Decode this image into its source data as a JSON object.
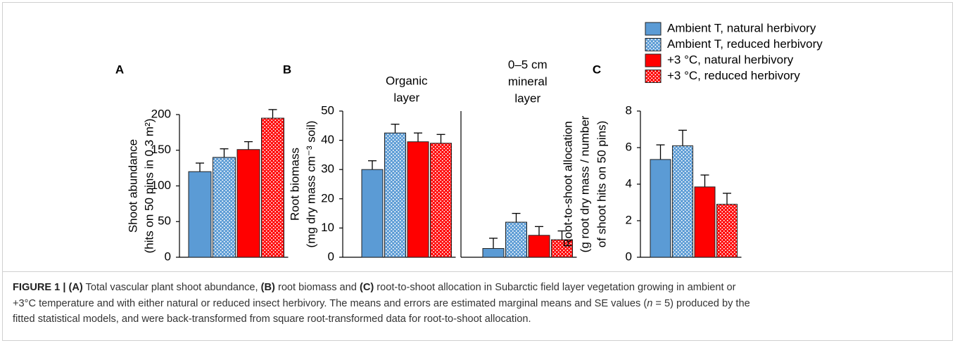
{
  "chart_data": [
    {
      "type": "bar",
      "label": "A",
      "ylabel": [
        "Shoot abundance",
        "(hits on 50 pins in 0.3 m²)"
      ],
      "ylim": [
        0,
        200
      ],
      "yticks": [
        0,
        50,
        100,
        150,
        200
      ],
      "series": [
        {
          "color": "#5b9bd5",
          "pattern": "solid",
          "values": [
            120
          ],
          "errors": [
            12
          ]
        },
        {
          "color": "#5b9bd5",
          "pattern": "dotted",
          "values": [
            140
          ],
          "errors": [
            12
          ]
        },
        {
          "color": "#ff0000",
          "pattern": "solid",
          "values": [
            151
          ],
          "errors": [
            11
          ]
        },
        {
          "color": "#ff0000",
          "pattern": "dotted",
          "values": [
            195
          ],
          "errors": [
            12
          ]
        }
      ]
    },
    {
      "type": "bar",
      "label": "B",
      "ylabel": [
        "Root biomass",
        "(mg dry mass cm⁻³ soil)"
      ],
      "ylim": [
        0,
        50
      ],
      "yticks": [
        0,
        10,
        20,
        30,
        40,
        50
      ],
      "categories": [
        [
          "Organic",
          "layer"
        ],
        [
          "0–5 cm",
          "mineral",
          "layer"
        ]
      ],
      "series": [
        {
          "color": "#5b9bd5",
          "pattern": "solid",
          "values": [
            30,
            3
          ],
          "errors": [
            3,
            3.5
          ]
        },
        {
          "color": "#5b9bd5",
          "pattern": "dotted",
          "values": [
            42.5,
            12
          ],
          "errors": [
            3,
            3
          ]
        },
        {
          "color": "#ff0000",
          "pattern": "solid",
          "values": [
            39.5,
            7.5
          ],
          "errors": [
            3,
            3
          ]
        },
        {
          "color": "#ff0000",
          "pattern": "dotted",
          "values": [
            39,
            6
          ],
          "errors": [
            3,
            3
          ]
        }
      ]
    },
    {
      "type": "bar",
      "label": "C",
      "ylabel": [
        "Root-to-shoot allocation",
        "(g root dry mass / number",
        "of shoot hits on 50 pins)"
      ],
      "ylim": [
        0,
        8
      ],
      "yticks": [
        0,
        2,
        4,
        6,
        8
      ],
      "series": [
        {
          "name": "Ambient T, natural herbivory",
          "color": "#5b9bd5",
          "pattern": "solid",
          "values": [
            5.35
          ],
          "errors": [
            0.8
          ]
        },
        {
          "name": "Ambient T, reduced herbivory",
          "color": "#5b9bd5",
          "pattern": "dotted",
          "values": [
            6.1
          ],
          "errors": [
            0.85
          ]
        },
        {
          "name": "+3 °C, natural herbivory",
          "color": "#ff0000",
          "pattern": "solid",
          "values": [
            3.85
          ],
          "errors": [
            0.65
          ]
        },
        {
          "name": "+3 °C, reduced herbivory",
          "color": "#ff0000",
          "pattern": "dotted",
          "values": [
            2.9
          ],
          "errors": [
            0.6
          ]
        }
      ]
    }
  ],
  "caption": [
    [
      {
        "text": "FIGURE 1 | (A)",
        "style": "bold"
      },
      {
        "text": " Total vascular plant shoot abundance, "
      },
      {
        "text": "(B)",
        "style": "bold"
      },
      {
        "text": " root biomass and "
      },
      {
        "text": "(C)",
        "style": "bold"
      },
      {
        "text": " root-to-shoot allocation in Subarctic field layer vegetation growing in ambient or"
      }
    ],
    [
      {
        "text": "+3°C temperature and with either natural or reduced insect herbivory. The means and errors are estimated marginal means and SE values ("
      },
      {
        "text": "n",
        "style": "italic"
      },
      {
        "text": " = 5) produced by the"
      }
    ],
    [
      {
        "text": "fitted statistical models, and were back-transformed from square root-transformed data for root-to-shoot allocation."
      }
    ]
  ]
}
